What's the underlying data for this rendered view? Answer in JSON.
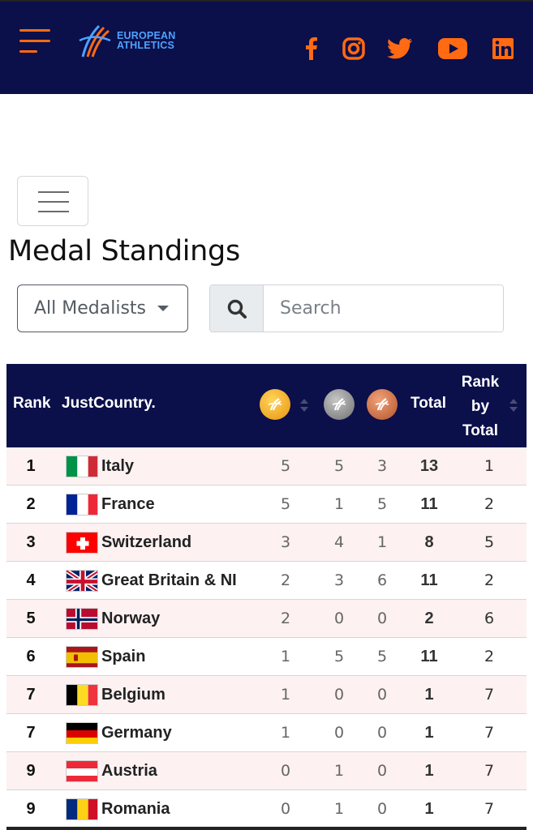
{
  "header": {
    "logo_line1": "EUROPEAN",
    "logo_line2": "ATHLETICS",
    "social": [
      "facebook-icon",
      "instagram-icon",
      "twitter-icon",
      "youtube-icon",
      "linkedin-icon"
    ],
    "accent": "#ff6a13",
    "bar_color": "#0b0f4a"
  },
  "page": {
    "title": "Medal Standings"
  },
  "filter": {
    "selected": "All Medalists"
  },
  "search": {
    "placeholder": "Search"
  },
  "table": {
    "headers": {
      "rank": "Rank",
      "country": "JustCountry.",
      "total": "Total",
      "rank_by_total_1": "Rank",
      "rank_by_total_2": "by",
      "rank_by_total_3": "Total"
    },
    "medal_colors": {
      "gold": "#f5a623",
      "silver": "#8a8a8a",
      "bronze": "#c8693a"
    },
    "rows": [
      {
        "rank": "1",
        "country": "Italy",
        "flag": "italy",
        "gold": "5",
        "silver": "5",
        "bronze": "3",
        "total": "13",
        "rank_by_total": "1"
      },
      {
        "rank": "2",
        "country": "France",
        "flag": "france",
        "gold": "5",
        "silver": "1",
        "bronze": "5",
        "total": "11",
        "rank_by_total": "2"
      },
      {
        "rank": "3",
        "country": "Switzerland",
        "flag": "switzerland",
        "gold": "3",
        "silver": "4",
        "bronze": "1",
        "total": "8",
        "rank_by_total": "5"
      },
      {
        "rank": "4",
        "country": "Great Britain & NI",
        "flag": "great-britain",
        "gold": "2",
        "silver": "3",
        "bronze": "6",
        "total": "11",
        "rank_by_total": "2"
      },
      {
        "rank": "5",
        "country": "Norway",
        "flag": "norway",
        "gold": "2",
        "silver": "0",
        "bronze": "0",
        "total": "2",
        "rank_by_total": "6"
      },
      {
        "rank": "6",
        "country": "Spain",
        "flag": "spain",
        "gold": "1",
        "silver": "5",
        "bronze": "5",
        "total": "11",
        "rank_by_total": "2"
      },
      {
        "rank": "7",
        "country": "Belgium",
        "flag": "belgium",
        "gold": "1",
        "silver": "0",
        "bronze": "0",
        "total": "1",
        "rank_by_total": "7"
      },
      {
        "rank": "7",
        "country": "Germany",
        "flag": "germany",
        "gold": "1",
        "silver": "0",
        "bronze": "0",
        "total": "1",
        "rank_by_total": "7"
      },
      {
        "rank": "9",
        "country": "Austria",
        "flag": "austria",
        "gold": "0",
        "silver": "1",
        "bronze": "0",
        "total": "1",
        "rank_by_total": "7"
      },
      {
        "rank": "9",
        "country": "Romania",
        "flag": "romania",
        "gold": "0",
        "silver": "1",
        "bronze": "0",
        "total": "1",
        "rank_by_total": "7"
      }
    ]
  }
}
